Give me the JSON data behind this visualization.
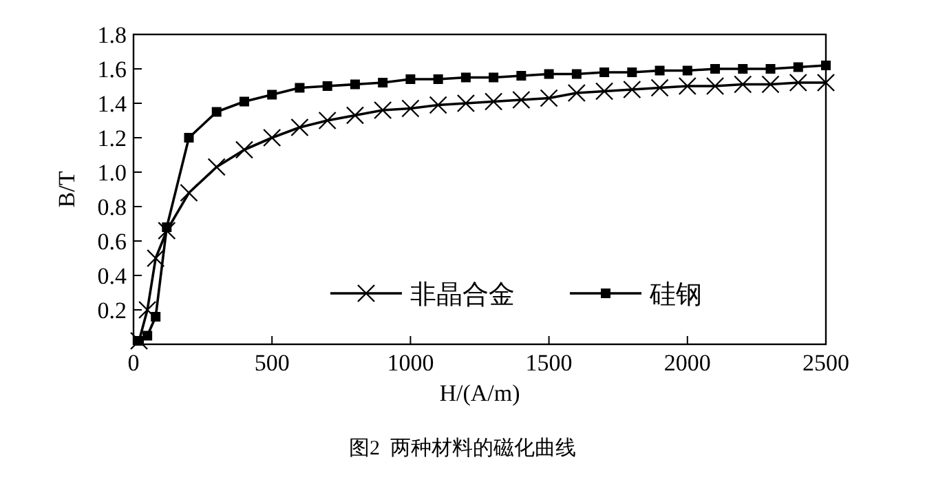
{
  "chart_data": {
    "type": "line",
    "xlabel": "H/(A/m)",
    "ylabel": "B/T",
    "xlim": [
      0,
      2500
    ],
    "xticks": [
      0,
      500,
      1000,
      1500,
      2000,
      2500
    ],
    "ylim": [
      0,
      1.8
    ],
    "yticks": [
      0.2,
      0.4,
      0.6,
      0.8,
      {
        "value": 1,
        "label": "1.0"
      },
      1.2,
      1.4,
      1.6,
      1.8
    ],
    "grid": false,
    "legend": "bottom right",
    "line_style": "solid",
    "annotations": [
      "图2  两种材料的磁化曲线"
    ],
    "series": [
      {
        "name": "非晶合金",
        "color": "#000000",
        "marker": "cross",
        "x": [
          20,
          50,
          80,
          120,
          200,
          300,
          400,
          500,
          600,
          700,
          800,
          900,
          1000,
          1100,
          1200,
          1300,
          1400,
          1500,
          1600,
          1700,
          1800,
          1900,
          2000,
          2100,
          2200,
          2300,
          2400,
          2500
        ],
        "values": [
          0.02,
          0.2,
          0.5,
          0.66,
          0.88,
          1.03,
          1.13,
          1.2,
          1.26,
          1.3,
          1.33,
          1.36,
          1.37,
          1.39,
          1.4,
          1.41,
          1.42,
          1.43,
          1.46,
          1.47,
          1.48,
          1.49,
          1.5,
          1.5,
          1.51,
          1.51,
          1.52,
          1.52
        ]
      },
      {
        "name": "硅钢",
        "color": "#000000",
        "marker": "square",
        "x": [
          20,
          50,
          80,
          120,
          200,
          300,
          400,
          500,
          600,
          700,
          800,
          900,
          1000,
          1100,
          1200,
          1300,
          1400,
          1500,
          1600,
          1700,
          1800,
          1900,
          2000,
          2100,
          2200,
          2300,
          2400,
          2500
        ],
        "values": [
          0.02,
          0.05,
          0.16,
          0.68,
          1.2,
          1.35,
          1.41,
          1.45,
          1.49,
          1.5,
          1.51,
          1.52,
          1.54,
          1.54,
          1.55,
          1.55,
          1.56,
          1.57,
          1.57,
          1.58,
          1.58,
          1.59,
          1.59,
          1.6,
          1.6,
          1.6,
          1.61,
          1.62
        ]
      }
    ]
  }
}
